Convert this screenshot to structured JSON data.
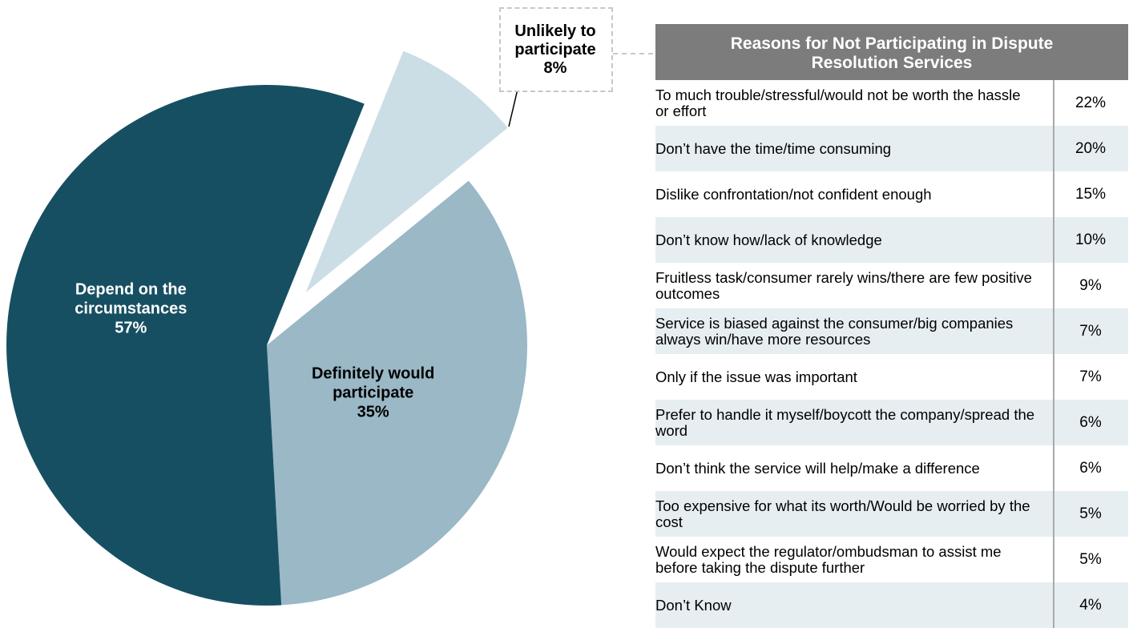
{
  "chart_data": [
    {
      "type": "pie",
      "slices": [
        {
          "label_lines": [
            "Unlikely to",
            "participate"
          ],
          "value": 8,
          "value_label": "8%",
          "color": "#ccdee5",
          "exploded": true
        },
        {
          "label_lines": [
            "Definitely would",
            "participate"
          ],
          "value": 35,
          "value_label": "35%",
          "color": "#9ab8c6",
          "exploded": false
        },
        {
          "label_lines": [
            "Depend on the",
            "circumstances"
          ],
          "value": 57,
          "value_label": "57%",
          "color": "#174f62",
          "exploded": false
        }
      ],
      "label_colors": {
        "dark_slice": "#ffffff",
        "light_slice": "#000000"
      }
    },
    {
      "type": "table",
      "title_lines": [
        "Reasons for Not Participating in Dispute",
        "Resolution Services"
      ],
      "rows": [
        {
          "reason": "To much trouble/stressful/would not be worth the hassle or effort",
          "value": 22,
          "value_label": "22%"
        },
        {
          "reason": "Don’t have the time/time consuming",
          "value": 20,
          "value_label": "20%"
        },
        {
          "reason": "Dislike confrontation/not confident enough",
          "value": 15,
          "value_label": "15%"
        },
        {
          "reason": "Don’t know how/lack of knowledge",
          "value": 10,
          "value_label": "10%"
        },
        {
          "reason": "Fruitless task/consumer rarely wins/there are few positive outcomes",
          "value": 9,
          "value_label": "9%"
        },
        {
          "reason": "Service is biased against the consumer/big companies always win/have more resources",
          "value": 7,
          "value_label": "7%"
        },
        {
          "reason": "Only if the issue was important",
          "value": 7,
          "value_label": "7%"
        },
        {
          "reason": "Prefer to handle it myself/boycott the company/spread the word",
          "value": 6,
          "value_label": "6%"
        },
        {
          "reason": "Don’t think the service will help/make a difference",
          "value": 6,
          "value_label": "6%"
        },
        {
          "reason": "Too expensive for what its worth/Would be worried by the cost",
          "value": 5,
          "value_label": "5%"
        },
        {
          "reason": "Would expect the regulator/ombudsman to assist me before taking the dispute further",
          "value": 5,
          "value_label": "5%"
        },
        {
          "reason": "Don’t Know",
          "value": 4,
          "value_label": "4%"
        }
      ],
      "colors": {
        "header": "#7c7c7c",
        "alt_row": "#e6eef2",
        "divider": "#a9a9a9"
      }
    }
  ]
}
